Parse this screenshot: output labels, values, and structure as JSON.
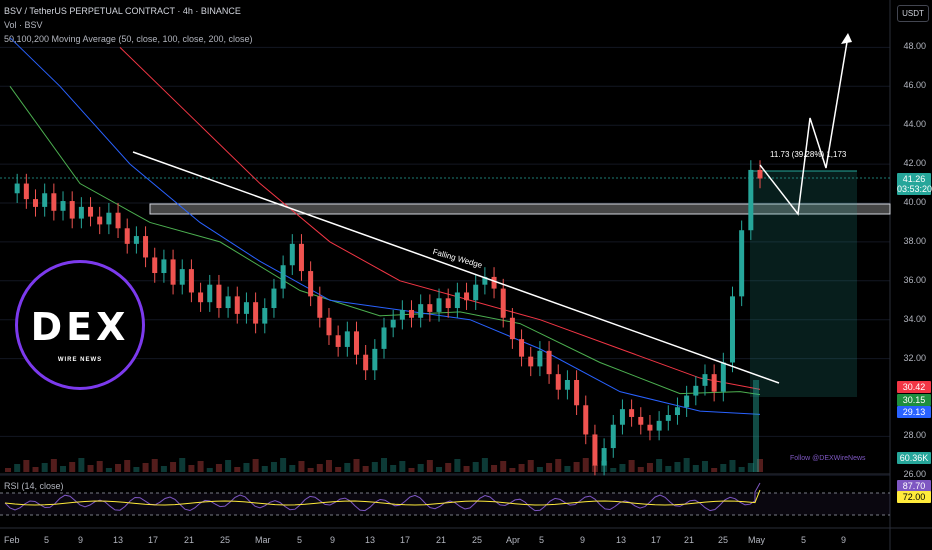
{
  "header": {
    "title": "BSV / TetherUS PERPETUAL CONTRACT · 4h · BINANCE",
    "volume_label": "Vol · BSV",
    "ma_label": "50,100,200 Moving Average (50, close, 100, close, 200, close)"
  },
  "currency_button": "USDT",
  "price_axis": [
    "48.00",
    "46.00",
    "44.00",
    "42.00",
    "40.00",
    "38.00",
    "36.00",
    "34.00",
    "32.00",
    "28.00",
    "26.00"
  ],
  "date_axis": [
    "Feb",
    "5",
    "9",
    "13",
    "17",
    "21",
    "25",
    "Mar",
    "5",
    "9",
    "13",
    "17",
    "21",
    "25",
    "Apr",
    "5",
    "9",
    "13",
    "17",
    "21",
    "25",
    "May",
    "5",
    "9"
  ],
  "price_tags": {
    "last_price": "41.26",
    "countdown": "03:53:20",
    "ma200": "30.42",
    "ma50": "30.15",
    "ma100": "29.13",
    "volume": "60.36K"
  },
  "rsi": {
    "label": "RSI (14, close)",
    "value": "87.70",
    "ma_value": "72.00"
  },
  "annotations": {
    "wedge_label": "Falling Wedge",
    "measure_label": "11.73 (39.28%) 1,173",
    "follow_text": "Follow @DEXWireNews"
  },
  "logo": {
    "main": "DEX",
    "sub": "WIRE NEWS"
  },
  "colors": {
    "up": "#26a69a",
    "down": "#ef5350",
    "ma50": "#4caf50",
    "ma100": "#2962ff",
    "ma200": "#f23645",
    "rsi": "#ffeb3b",
    "logo_ring": "#7c3aed"
  },
  "chart_data": {
    "type": "candlestick",
    "symbol": "BSVUSDT",
    "interval": "4h",
    "ylim": [
      26,
      49
    ],
    "close_series": [
      40.5,
      41.0,
      40.2,
      39.8,
      40.5,
      39.6,
      40.1,
      39.2,
      39.8,
      39.3,
      38.9,
      39.5,
      38.7,
      37.9,
      38.3,
      37.2,
      36.4,
      37.1,
      35.8,
      36.6,
      35.4,
      34.9,
      35.8,
      34.6,
      35.2,
      34.3,
      34.9,
      33.8,
      34.6,
      35.6,
      36.8,
      37.9,
      36.5,
      35.2,
      34.1,
      33.2,
      32.6,
      33.4,
      32.2,
      31.4,
      32.5,
      33.6,
      34.0,
      34.5,
      34.1,
      34.8,
      34.4,
      35.1,
      34.6,
      35.4,
      35.0,
      35.8,
      36.2,
      35.6,
      34.1,
      33.0,
      32.1,
      31.6,
      32.4,
      31.2,
      30.4,
      30.9,
      29.6,
      28.1,
      26.5,
      27.4,
      28.6,
      29.4,
      29.0,
      28.6,
      28.3,
      28.8,
      29.1,
      29.5,
      30.1,
      30.6,
      31.2,
      30.3,
      31.8,
      35.2,
      38.6,
      41.7,
      41.26
    ]
  }
}
